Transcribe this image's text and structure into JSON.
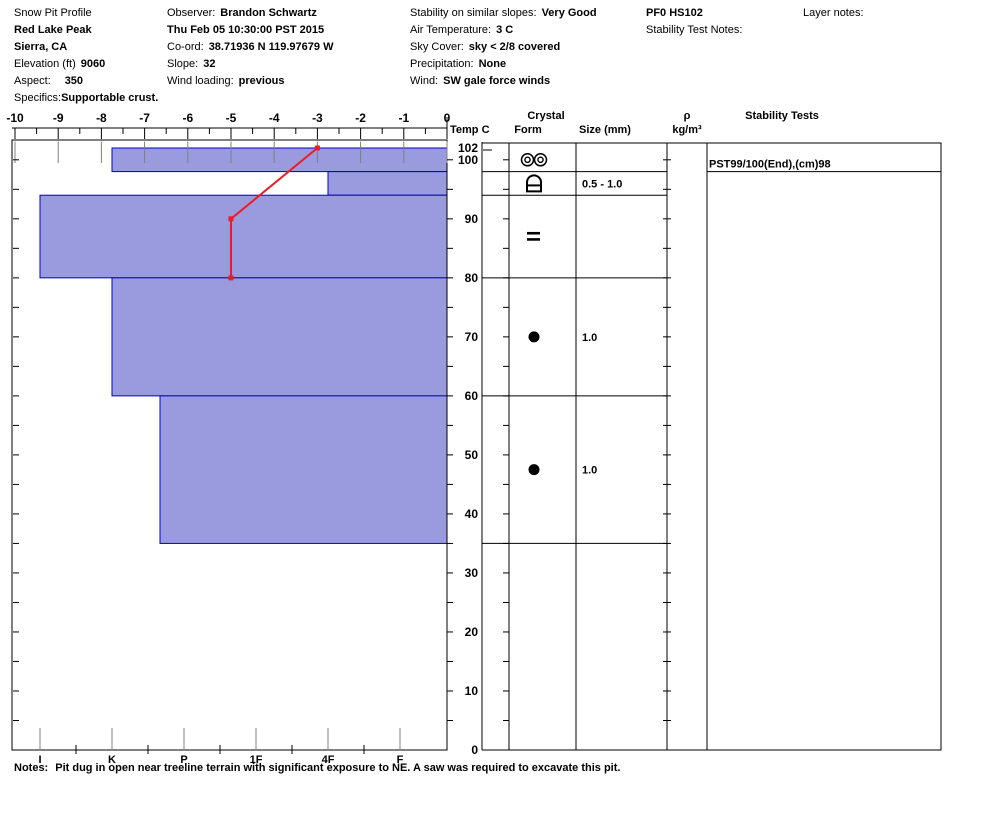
{
  "header": {
    "col1": {
      "title": "Snow Pit Profile",
      "location_name": "Red Lake Peak",
      "region": "Sierra, CA",
      "elevation_label": "Elevation (ft)",
      "elevation_value": "9060",
      "aspect_label": "Aspect:",
      "aspect_value": "350",
      "specifics_label": "Specifics:",
      "specifics_value": "Supportable crust."
    },
    "col2": {
      "observer_label": "Observer:",
      "observer_value": "Brandon Schwartz",
      "datetime": "Thu Feb 05 10:30:00 PST 2015",
      "coord_label": "Co-ord:",
      "coord_value": "38.71936 N 119.97679 W",
      "slope_label": "Slope:",
      "slope_value": "32",
      "wind_loading_label": "Wind loading:",
      "wind_loading_value": "previous"
    },
    "col3": {
      "stability_label": "Stability on similar slopes:",
      "stability_value": "Very Good",
      "air_temp_label": "Air Temperature:",
      "air_temp_value": "3 C",
      "sky_label": "Sky Cover:",
      "sky_value": "sky < 2/8 covered",
      "precip_label": "Precipitation:",
      "precip_value": "None",
      "wind_label": "Wind:",
      "wind_value": "SW gale force winds"
    },
    "col4": {
      "pf_hs": "PF0 HS102",
      "stability_test_notes_label": "Stability Test Notes:"
    },
    "col5": {
      "layer_notes_label": "Layer notes:"
    }
  },
  "column_headers": {
    "temp": "Temp C",
    "crystal": "Crystal",
    "form": "Form",
    "size": "Size (mm)",
    "density_symbol": "ρ",
    "density_units": "kg/m³",
    "stability": "Stability Tests"
  },
  "notes": {
    "label": "Notes:",
    "text": "Pit dug in open near treeline terrain with significant exposure to NE. A saw was required to excavate this pit."
  },
  "chart_data": {
    "type": "snow-pit-profile",
    "title": "Snow Pit Profile hardness / temperature plot",
    "temp_axis": {
      "label": "Temp C",
      "min": -10,
      "max": 0,
      "ticks": [
        -10,
        -9,
        -8,
        -7,
        -6,
        -5,
        -4,
        -3,
        -2,
        -1,
        0
      ]
    },
    "depth_axis": {
      "min": 0,
      "max": 102,
      "tick_labels": [
        102,
        100,
        90,
        80,
        70,
        60,
        50,
        40,
        30,
        20,
        10,
        0
      ]
    },
    "hardness_axis": {
      "categories": [
        "I",
        "K",
        "P",
        "1F",
        "4F",
        "F"
      ]
    },
    "layers": [
      {
        "top_cm": 102,
        "bottom_cm": 98,
        "hardness": "K",
        "form": "melt-freeze-clusters",
        "size_mm": ""
      },
      {
        "top_cm": 98,
        "bottom_cm": 94,
        "hardness": "4F",
        "form": "crust",
        "size_mm": "0.5 - 1.0"
      },
      {
        "top_cm": 94,
        "bottom_cm": 80,
        "hardness": "I",
        "form": "ice-lens",
        "size_mm": ""
      },
      {
        "top_cm": 80,
        "bottom_cm": 60,
        "hardness": "K",
        "form": "rounded-grains",
        "size_mm": "1.0"
      },
      {
        "top_cm": 60,
        "bottom_cm": 35,
        "hardness": "P+",
        "form": "rounded-grains",
        "size_mm": "1.0"
      }
    ],
    "temperature_profile": [
      {
        "depth_cm": 102,
        "temp_c": -3
      },
      {
        "depth_cm": 90,
        "temp_c": -5
      },
      {
        "depth_cm": 80,
        "temp_c": -5
      }
    ],
    "stability_tests": [
      {
        "depth_cm": 98,
        "text": "PST99/100(End),(cm)98"
      }
    ],
    "colors": {
      "layer_fill": "#9a9ade",
      "layer_stroke": "#0000cc",
      "temp_line": "#ed1c24",
      "grid_gray": "#808080"
    }
  }
}
